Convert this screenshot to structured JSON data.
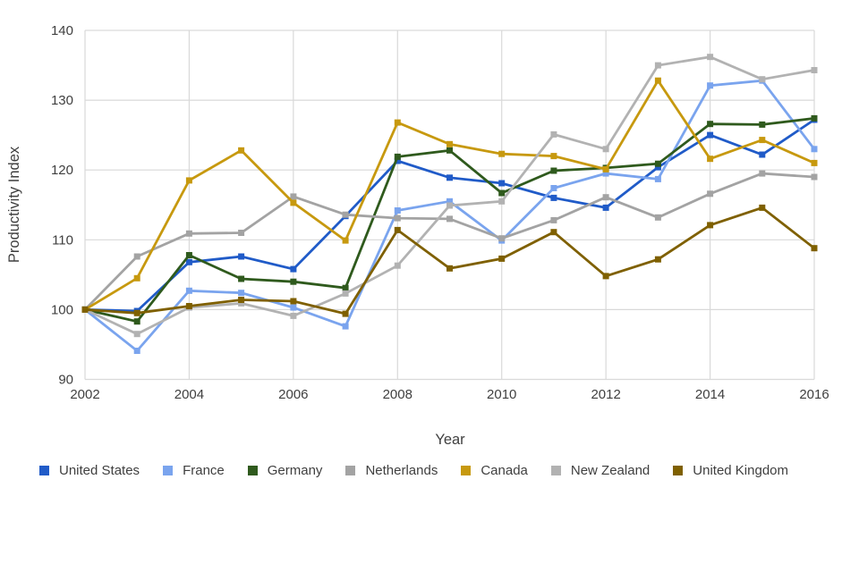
{
  "chart_data": {
    "type": "line",
    "title": "",
    "xlabel": "Year",
    "ylabel": "Productivity Index",
    "x": [
      2002,
      2003,
      2004,
      2005,
      2006,
      2007,
      2008,
      2009,
      2010,
      2011,
      2012,
      2013,
      2014,
      2015,
      2016
    ],
    "xticks": [
      2002,
      2004,
      2006,
      2008,
      2010,
      2012,
      2014,
      2016
    ],
    "ylim": [
      90,
      140
    ],
    "yticks": [
      90,
      100,
      110,
      120,
      130,
      140
    ],
    "grid": true,
    "legend_position": "bottom",
    "grid_color": "#d9d9d9",
    "tick_text_color": "#3f3f3f",
    "series": [
      {
        "name": "United States",
        "color": "#205BC8",
        "values": [
          100,
          99.8,
          106.8,
          107.6,
          105.8,
          113.4,
          121.3,
          118.9,
          118.1,
          116.0,
          114.6,
          120.4,
          125.0,
          122.2,
          127.2
        ]
      },
      {
        "name": "France",
        "color": "#7AA4EE",
        "values": [
          100,
          94.1,
          102.7,
          102.4,
          100.3,
          97.6,
          114.2,
          115.5,
          109.9,
          117.4,
          119.5,
          118.7,
          132.1,
          132.8,
          123.0
        ]
      },
      {
        "name": "Germany",
        "color": "#2F5A1D",
        "values": [
          100,
          98.3,
          107.8,
          104.4,
          104.0,
          103.1,
          121.9,
          122.8,
          116.7,
          119.9,
          120.3,
          120.9,
          126.6,
          126.5,
          127.4
        ]
      },
      {
        "name": "Netherlands",
        "color": "#A3A3A3",
        "values": [
          100,
          107.6,
          110.9,
          111.0,
          116.2,
          113.6,
          113.1,
          113.0,
          110.2,
          112.8,
          116.1,
          113.2,
          116.6,
          119.5,
          119.0
        ]
      },
      {
        "name": "Canada",
        "color": "#C7990F",
        "values": [
          100,
          104.5,
          118.5,
          122.8,
          115.3,
          109.9,
          126.8,
          123.7,
          122.3,
          122.0,
          120.1,
          132.8,
          121.6,
          124.3,
          121.0
        ]
      },
      {
        "name": "New Zealand",
        "color": "#B2B2B2",
        "values": [
          100,
          96.5,
          100.3,
          100.9,
          99.1,
          102.3,
          106.3,
          114.9,
          115.5,
          125.1,
          123.0,
          135.0,
          136.2,
          133.0,
          134.3
        ]
      },
      {
        "name": "United Kingdom",
        "color": "#7F6000",
        "values": [
          100,
          99.5,
          100.5,
          101.4,
          101.2,
          99.4,
          111.4,
          105.9,
          107.3,
          111.1,
          104.8,
          107.2,
          112.1,
          114.6,
          108.8
        ]
      }
    ]
  }
}
